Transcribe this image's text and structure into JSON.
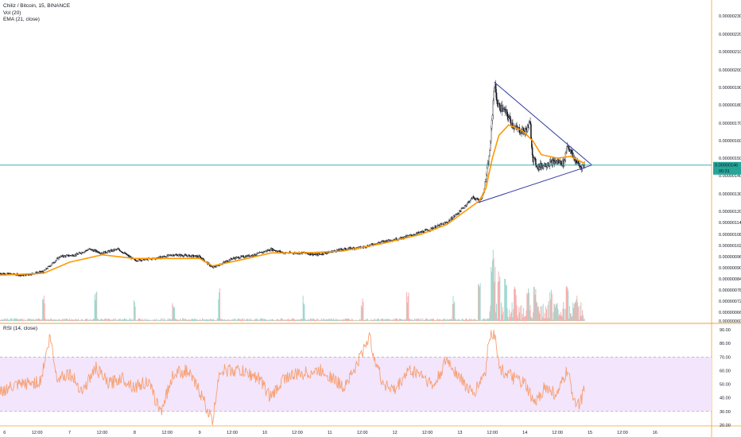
{
  "header": {
    "symbol_line": "Chiliz / Bitcoin, 15, BINANCE",
    "vol_label": "Vol (20)",
    "ema_label": "EMA (21, close)",
    "rsi_label": "RSI (14, close)"
  },
  "price_badge": {
    "value": "0.00000146",
    "countdown": "00:31",
    "color": "#26a69a"
  },
  "colors": {
    "ema": "#ff9800",
    "rsi": "#f7a072",
    "rsi_band": "#f3e5fb",
    "volume_up": "#8fd1c7",
    "volume_down": "#f5a3a3",
    "trendline": "#2f3a9e",
    "price_line": "#26a69a",
    "candle": "#131722"
  },
  "chart_data": [
    {
      "type": "candlestick",
      "title": "Chiliz / Bitcoin, 15, BINANCE",
      "x_ticks": [
        "6",
        "12:00",
        "7",
        "12:00",
        "8",
        "12:00",
        "9",
        "12:00",
        "10",
        "12:00",
        "11",
        "12:00",
        "12",
        "12:00",
        "13",
        "12:00",
        "14",
        "12:00",
        "15",
        "12:00",
        "16"
      ],
      "y_ticks": [
        "0.00000230",
        "0.00000220",
        "0.00000210",
        "0.00000200",
        "0.00000190",
        "0.00000180",
        "0.00000170",
        "0.00000160",
        "0.00000150",
        "0.00000140",
        "0.00000130",
        "0.00000120",
        "0.00000114",
        "0.00000108",
        "0.00000102",
        "0.00000096",
        "0.00000090",
        "0.00000084",
        "0.00000078",
        "0.00000072",
        "0.00000066",
        "0.00000060"
      ],
      "x_range_days": [
        5.93,
        16.87
      ],
      "close_path": [
        [
          5.93,
          8.7e-07
        ],
        [
          6.3,
          8.6e-07
        ],
        [
          6.6,
          8.8e-07
        ],
        [
          6.85,
          9.6e-07
        ],
        [
          7.1,
          9.7e-07
        ],
        [
          7.3,
          1e-06
        ],
        [
          7.5,
          9.8e-07
        ],
        [
          7.75,
          1e-06
        ],
        [
          8.0,
          9.4e-07
        ],
        [
          8.3,
          9.5e-07
        ],
        [
          8.6,
          9.7e-07
        ],
        [
          9.0,
          9.6e-07
        ],
        [
          9.2,
          9e-07
        ],
        [
          9.5,
          9.5e-07
        ],
        [
          9.85,
          9.7e-07
        ],
        [
          10.1,
          1e-06
        ],
        [
          10.3,
          9.8e-07
        ],
        [
          10.6,
          9.8e-07
        ],
        [
          10.8,
          9.7e-07
        ],
        [
          11.2,
          1e-06
        ],
        [
          11.5,
          1.01e-06
        ],
        [
          11.8,
          1.04e-06
        ],
        [
          12.1,
          1.06e-06
        ],
        [
          12.5,
          1.1e-06
        ],
        [
          12.8,
          1.14e-06
        ],
        [
          13.0,
          1.2e-06
        ],
        [
          13.2,
          1.28e-06
        ],
        [
          13.3,
          1.26e-06
        ],
        [
          13.36,
          1.3e-06
        ],
        [
          13.45,
          1.5e-06
        ],
        [
          13.5,
          1.75e-06
        ],
        [
          13.53,
          1.93e-06
        ],
        [
          13.58,
          1.8e-06
        ],
        [
          13.7,
          1.76e-06
        ],
        [
          13.85,
          1.67e-06
        ],
        [
          14.0,
          1.65e-06
        ],
        [
          14.08,
          1.7e-06
        ],
        [
          14.12,
          1.5e-06
        ],
        [
          14.2,
          1.45e-06
        ],
        [
          14.35,
          1.47e-06
        ],
        [
          14.5,
          1.48e-06
        ],
        [
          14.6,
          1.47e-06
        ],
        [
          14.65,
          1.58e-06
        ],
        [
          14.75,
          1.5e-06
        ],
        [
          14.85,
          1.45e-06
        ],
        [
          14.92,
          1.46e-06
        ]
      ],
      "ema_path": [
        [
          5.93,
          8.6e-07
        ],
        [
          6.6,
          8.7e-07
        ],
        [
          7.0,
          9.3e-07
        ],
        [
          7.5,
          9.7e-07
        ],
        [
          8.0,
          9.5e-07
        ],
        [
          8.6,
          9.5e-07
        ],
        [
          9.0,
          9.5e-07
        ],
        [
          9.2,
          9.1e-07
        ],
        [
          9.6,
          9.4e-07
        ],
        [
          10.1,
          9.8e-07
        ],
        [
          10.6,
          9.8e-07
        ],
        [
          11.2,
          9.9e-07
        ],
        [
          11.8,
          1.03e-06
        ],
        [
          12.4,
          1.08e-06
        ],
        [
          12.8,
          1.13e-06
        ],
        [
          13.15,
          1.22e-06
        ],
        [
          13.3,
          1.26e-06
        ],
        [
          13.4,
          1.33e-06
        ],
        [
          13.5,
          1.5e-06
        ],
        [
          13.6,
          1.63e-06
        ],
        [
          13.75,
          1.69e-06
        ],
        [
          13.95,
          1.66e-06
        ],
        [
          14.12,
          1.6e-06
        ],
        [
          14.25,
          1.52e-06
        ],
        [
          14.5,
          1.5e-06
        ],
        [
          14.7,
          1.51e-06
        ],
        [
          14.92,
          1.47e-06
        ]
      ],
      "triangle": {
        "apex": [
          15.03,
          1.46e-06
        ],
        "upper_start": [
          13.53,
          1.93e-06
        ],
        "lower_start": [
          13.28,
          1.25e-06
        ]
      },
      "last_price": 1.46e-06
    },
    {
      "type": "bar",
      "title": "Vol (20)",
      "x_range_days": [
        5.93,
        16.87
      ],
      "spikes": [
        [
          6.6,
          0.35
        ],
        [
          7.4,
          0.4
        ],
        [
          8.0,
          0.3
        ],
        [
          8.6,
          0.25
        ],
        [
          9.3,
          0.45
        ],
        [
          10.6,
          0.35
        ],
        [
          11.5,
          0.3
        ],
        [
          12.2,
          0.4
        ],
        [
          12.9,
          0.35
        ],
        [
          13.3,
          0.55
        ],
        [
          13.5,
          1.0
        ],
        [
          13.53,
          0.85
        ],
        [
          13.6,
          0.7
        ],
        [
          13.7,
          0.6
        ],
        [
          13.85,
          0.5
        ],
        [
          14.05,
          0.45
        ],
        [
          14.15,
          0.55
        ],
        [
          14.4,
          0.45
        ],
        [
          14.65,
          0.5
        ],
        [
          14.8,
          0.35
        ]
      ]
    },
    {
      "type": "line",
      "title": "RSI (14, close)",
      "y_ticks": [
        "90.00",
        "80.00",
        "70.00",
        "60.00",
        "50.00",
        "40.00",
        "30.00",
        "20.00"
      ],
      "band": [
        30,
        70
      ],
      "x_range_days": [
        5.93,
        14.92
      ],
      "values_anchor": [
        [
          5.93,
          45
        ],
        [
          6.3,
          50
        ],
        [
          6.55,
          52
        ],
        [
          6.7,
          85
        ],
        [
          6.8,
          55
        ],
        [
          7.0,
          58
        ],
        [
          7.2,
          45
        ],
        [
          7.4,
          62
        ],
        [
          7.6,
          50
        ],
        [
          7.8,
          55
        ],
        [
          8.0,
          48
        ],
        [
          8.2,
          52
        ],
        [
          8.4,
          30
        ],
        [
          8.6,
          58
        ],
        [
          8.8,
          60
        ],
        [
          9.0,
          45
        ],
        [
          9.2,
          22
        ],
        [
          9.3,
          60
        ],
        [
          9.6,
          60
        ],
        [
          9.9,
          55
        ],
        [
          10.1,
          40
        ],
        [
          10.3,
          55
        ],
        [
          10.6,
          58
        ],
        [
          10.9,
          60
        ],
        [
          11.2,
          48
        ],
        [
          11.4,
          62
        ],
        [
          11.6,
          85
        ],
        [
          11.8,
          52
        ],
        [
          12.0,
          45
        ],
        [
          12.2,
          60
        ],
        [
          12.4,
          58
        ],
        [
          12.6,
          48
        ],
        [
          12.8,
          68
        ],
        [
          13.0,
          55
        ],
        [
          13.2,
          42
        ],
        [
          13.4,
          60
        ],
        [
          13.45,
          86
        ],
        [
          13.55,
          87
        ],
        [
          13.6,
          62
        ],
        [
          13.8,
          55
        ],
        [
          14.0,
          50
        ],
        [
          14.15,
          35
        ],
        [
          14.3,
          48
        ],
        [
          14.5,
          42
        ],
        [
          14.65,
          60
        ],
        [
          14.75,
          40
        ],
        [
          14.85,
          35
        ],
        [
          14.92,
          50
        ]
      ]
    }
  ]
}
